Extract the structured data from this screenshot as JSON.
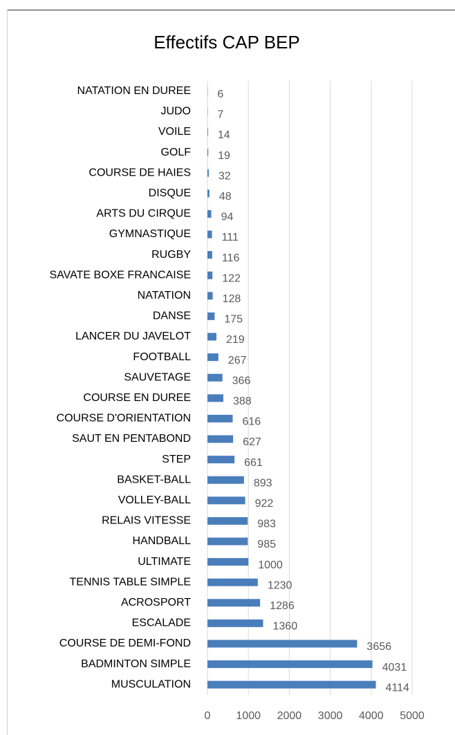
{
  "chart_data": {
    "type": "bar",
    "orientation": "horizontal",
    "title": "Effectifs CAP BEP",
    "categories": [
      "NATATION EN DUREE",
      "JUDO",
      "VOILE",
      "GOLF",
      "COURSE DE HAIES",
      "DISQUE",
      "ARTS DU CIRQUE",
      "GYMNASTIQUE",
      "RUGBY",
      "SAVATE BOXE FRANCAISE",
      "NATATION",
      "DANSE",
      "LANCER DU JAVELOT",
      "FOOTBALL",
      "SAUVETAGE",
      "COURSE EN DUREE",
      "COURSE D'ORIENTATION",
      "SAUT EN PENTABOND",
      "STEP",
      "BASKET-BALL",
      "VOLLEY-BALL",
      "RELAIS VITESSE",
      "HANDBALL",
      "ULTIMATE",
      "TENNIS TABLE SIMPLE",
      "ACROSPORT",
      "ESCALADE",
      "COURSE DE DEMI-FOND",
      "BADMINTON SIMPLE",
      "MUSCULATION"
    ],
    "values": [
      6,
      7,
      14,
      19,
      32,
      48,
      94,
      111,
      116,
      122,
      128,
      175,
      219,
      267,
      366,
      388,
      616,
      627,
      661,
      893,
      922,
      983,
      985,
      1000,
      1230,
      1286,
      1360,
      3656,
      4031,
      4114
    ],
    "color": "#4a7ebb",
    "xlim": [
      0,
      5000
    ],
    "xticks": [
      0,
      1000,
      2000,
      3000,
      4000,
      5000
    ],
    "grid": true
  }
}
